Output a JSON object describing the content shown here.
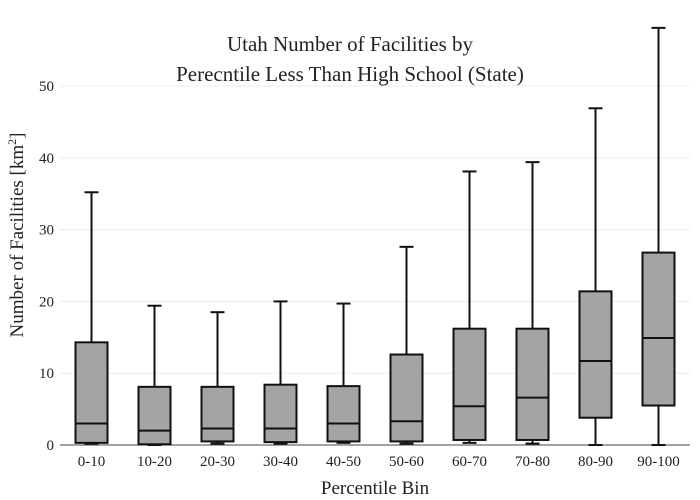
{
  "chart_data": {
    "type": "box",
    "title_lines": [
      "Utah Number of Facilities by",
      "Perecntile Less Than High School (State)"
    ],
    "xlabel": "Percentile Bin",
    "ylabel": "Number of Facilities  [km",
    "ylabel_sup": "2",
    "ylabel_close": "]",
    "ylim": [
      0,
      58.5
    ],
    "yticks": [
      0,
      10,
      20,
      30,
      40,
      50
    ],
    "grid": true,
    "categories": [
      "0-10",
      "10-20",
      "20-30",
      "30-40",
      "40-50",
      "50-60",
      "60-70",
      "70-80",
      "80-90",
      "90-100"
    ],
    "boxes": [
      {
        "min": 0.2,
        "q1": 0.3,
        "median": 3.0,
        "q3": 14.3,
        "max": 35.2
      },
      {
        "min": 0.0,
        "q1": 0.1,
        "median": 2.0,
        "q3": 8.1,
        "max": 19.4
      },
      {
        "min": 0.2,
        "q1": 0.5,
        "median": 2.3,
        "q3": 8.1,
        "max": 18.5
      },
      {
        "min": 0.2,
        "q1": 0.4,
        "median": 2.3,
        "q3": 8.4,
        "max": 20.0
      },
      {
        "min": 0.3,
        "q1": 0.5,
        "median": 3.0,
        "q3": 8.2,
        "max": 19.7
      },
      {
        "min": 0.2,
        "q1": 0.5,
        "median": 3.3,
        "q3": 12.6,
        "max": 27.6
      },
      {
        "min": 0.3,
        "q1": 0.7,
        "median": 5.4,
        "q3": 16.2,
        "max": 38.1
      },
      {
        "min": 0.2,
        "q1": 0.7,
        "median": 6.6,
        "q3": 16.2,
        "max": 39.4
      },
      {
        "min": 0.0,
        "q1": 3.8,
        "median": 11.7,
        "q3": 21.4,
        "max": 46.9
      },
      {
        "min": 0.0,
        "q1": 5.5,
        "median": 14.9,
        "q3": 26.8,
        "max": 58.1
      }
    ],
    "box_color": "#a4a4a4",
    "line_color": "#111111"
  }
}
